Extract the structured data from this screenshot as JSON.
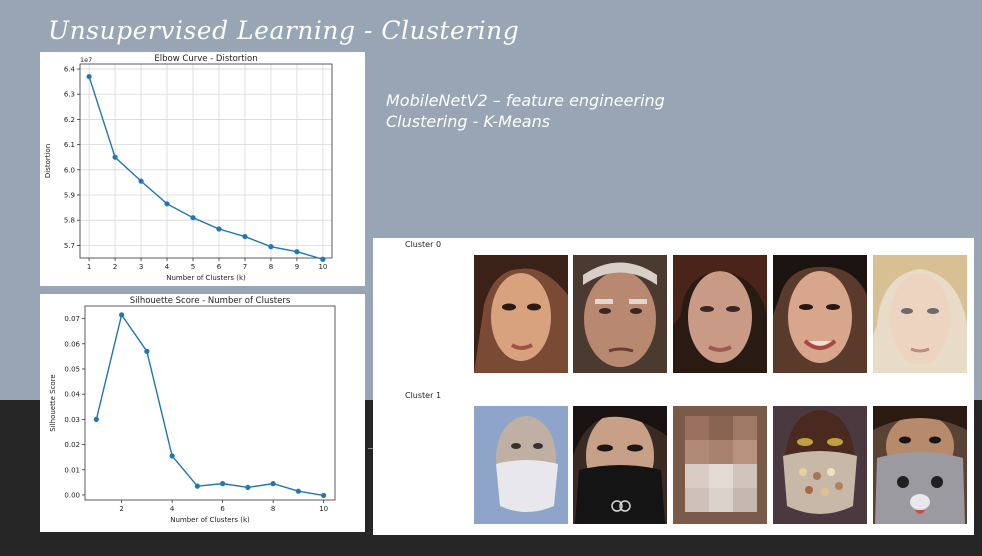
{
  "slide": {
    "title": "Unsupervised Learning - Clustering",
    "subtitle_lines": [
      "MobileNetV2 – feature engineering",
      "Clustering - K-Means"
    ]
  },
  "chart_data": [
    {
      "type": "line",
      "title": "Elbow Curve - Distortion",
      "xlabel": "Number of Clusters (k)",
      "ylabel": "Distortion",
      "y_multiplier_label": "1e7",
      "x": [
        1,
        2,
        3,
        4,
        5,
        6,
        7,
        8,
        9,
        10
      ],
      "y": [
        6.37,
        6.05,
        5.955,
        5.865,
        5.81,
        5.765,
        5.735,
        5.695,
        5.675,
        5.645
      ],
      "xlim": [
        0.65,
        10.35
      ],
      "ylim": [
        5.65,
        6.42
      ],
      "yticks": [
        5.7,
        5.8,
        5.9,
        6.0,
        6.1,
        6.2,
        6.3,
        6.4
      ],
      "ytick_labels": [
        "5.7",
        "5.8",
        "5.9",
        "6.0",
        "6.1",
        "6.2",
        "6.3",
        "6.4"
      ],
      "xticks": [
        1,
        2,
        3,
        4,
        5,
        6,
        7,
        8,
        9,
        10
      ],
      "grid": true,
      "color": "#1f77b4"
    },
    {
      "type": "line",
      "title": "Silhouette Score - Number of Clusters",
      "xlabel": "Number of Clusters (k)",
      "ylabel": "Silhouette Score",
      "x": [
        1,
        2,
        3,
        4,
        5,
        6,
        7,
        8,
        9,
        10
      ],
      "y": [
        0.03,
        0.0715,
        0.057,
        0.0155,
        0.0035,
        0.0045,
        0.003,
        0.0045,
        0.0015,
        -0.0002
      ],
      "xlim": [
        0.55,
        10.45
      ],
      "ylim": [
        -0.002,
        0.075
      ],
      "yticks": [
        0.0,
        0.01,
        0.02,
        0.03,
        0.04,
        0.05,
        0.06,
        0.07
      ],
      "ytick_labels": [
        "0.00",
        "0.01",
        "0.02",
        "0.03",
        "0.04",
        "0.05",
        "0.06",
        "0.07"
      ],
      "xticks": [
        2,
        4,
        6,
        8,
        10
      ],
      "grid": false,
      "color": "#1f77b4"
    }
  ],
  "clusters": {
    "labels": [
      "Cluster 0",
      "Cluster 1"
    ],
    "image_names": [
      [
        "face-image-woman-dark-hair",
        "face-image-elderly-man",
        "face-image-woman-red-hair",
        "face-image-woman-smiling",
        "face-image-woman-blonde"
      ],
      [
        "face-image-man-white-mask",
        "face-image-woman-black-mask",
        "face-image-blurred-mask",
        "face-image-woman-sequin-mask",
        "face-image-child-bear-mask"
      ]
    ]
  },
  "colors": {
    "top_background": "#97a5b4",
    "bottom_background": "#262626",
    "series": "#1f77b4"
  }
}
